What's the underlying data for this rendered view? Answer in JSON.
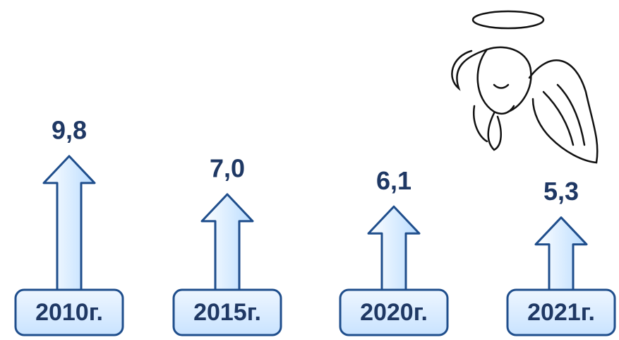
{
  "chart_data": {
    "type": "arrow",
    "categories": [
      "2010г.",
      "2015г.",
      "2020г.",
      "2021г."
    ],
    "values": [
      9.8,
      7.0,
      6.1,
      5.3
    ],
    "value_labels": [
      "9,8",
      "7,0",
      "6,1",
      "5,3"
    ],
    "color": "#dceeff"
  }
}
